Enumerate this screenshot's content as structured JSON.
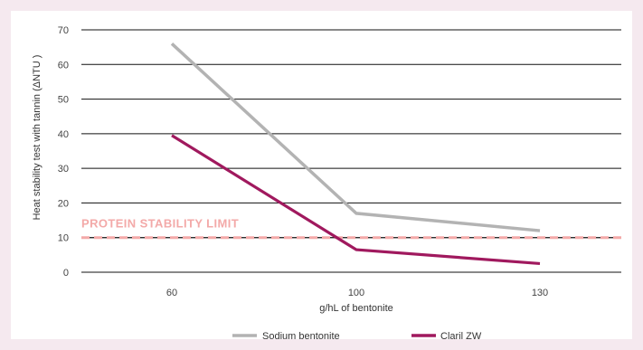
{
  "chart_data": {
    "type": "line",
    "x": [
      60,
      100,
      130
    ],
    "categories": [
      "60",
      "100",
      "130"
    ],
    "xlabel": "g/hL of bentonite",
    "ylabel": "Heat stability test with tannin (ΔNTU )",
    "ylim": [
      0,
      70
    ],
    "yticks": [
      0,
      10,
      20,
      30,
      40,
      50,
      60,
      70
    ],
    "grid": true,
    "legend_position": "bottom",
    "series": [
      {
        "name": "Sodium bentonite",
        "color": "#b3b3b3",
        "values": [
          66,
          17,
          12
        ]
      },
      {
        "name": "Claril ZW",
        "color": "#a0195e",
        "values": [
          39.5,
          6.5,
          2.5
        ]
      }
    ],
    "reference_line": {
      "value": 10,
      "label": "PROTEIN STABILITY LIMIT",
      "color": "#f3a9a8"
    }
  }
}
